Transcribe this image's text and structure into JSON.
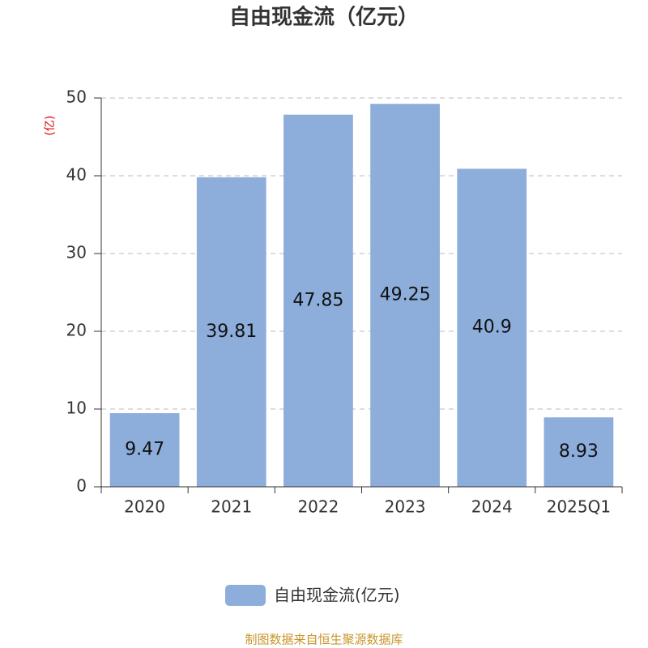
{
  "chart_data": {
    "type": "bar",
    "title": "自由现金流（亿元）",
    "y_axis_label": "(亿)",
    "categories": [
      "2020",
      "2021",
      "2022",
      "2023",
      "2024",
      "2025Q1"
    ],
    "series": [
      {
        "name": "自由现金流(亿元)",
        "color": "#8daddb",
        "values": [
          9.47,
          39.81,
          47.85,
          49.25,
          40.9,
          8.93
        ]
      }
    ],
    "ylim": [
      0,
      50
    ],
    "yticks": [
      0,
      10,
      20,
      30,
      40,
      50
    ],
    "grid": true,
    "legend": "bottom",
    "source": "制图数据来自恒生聚源数据库"
  }
}
